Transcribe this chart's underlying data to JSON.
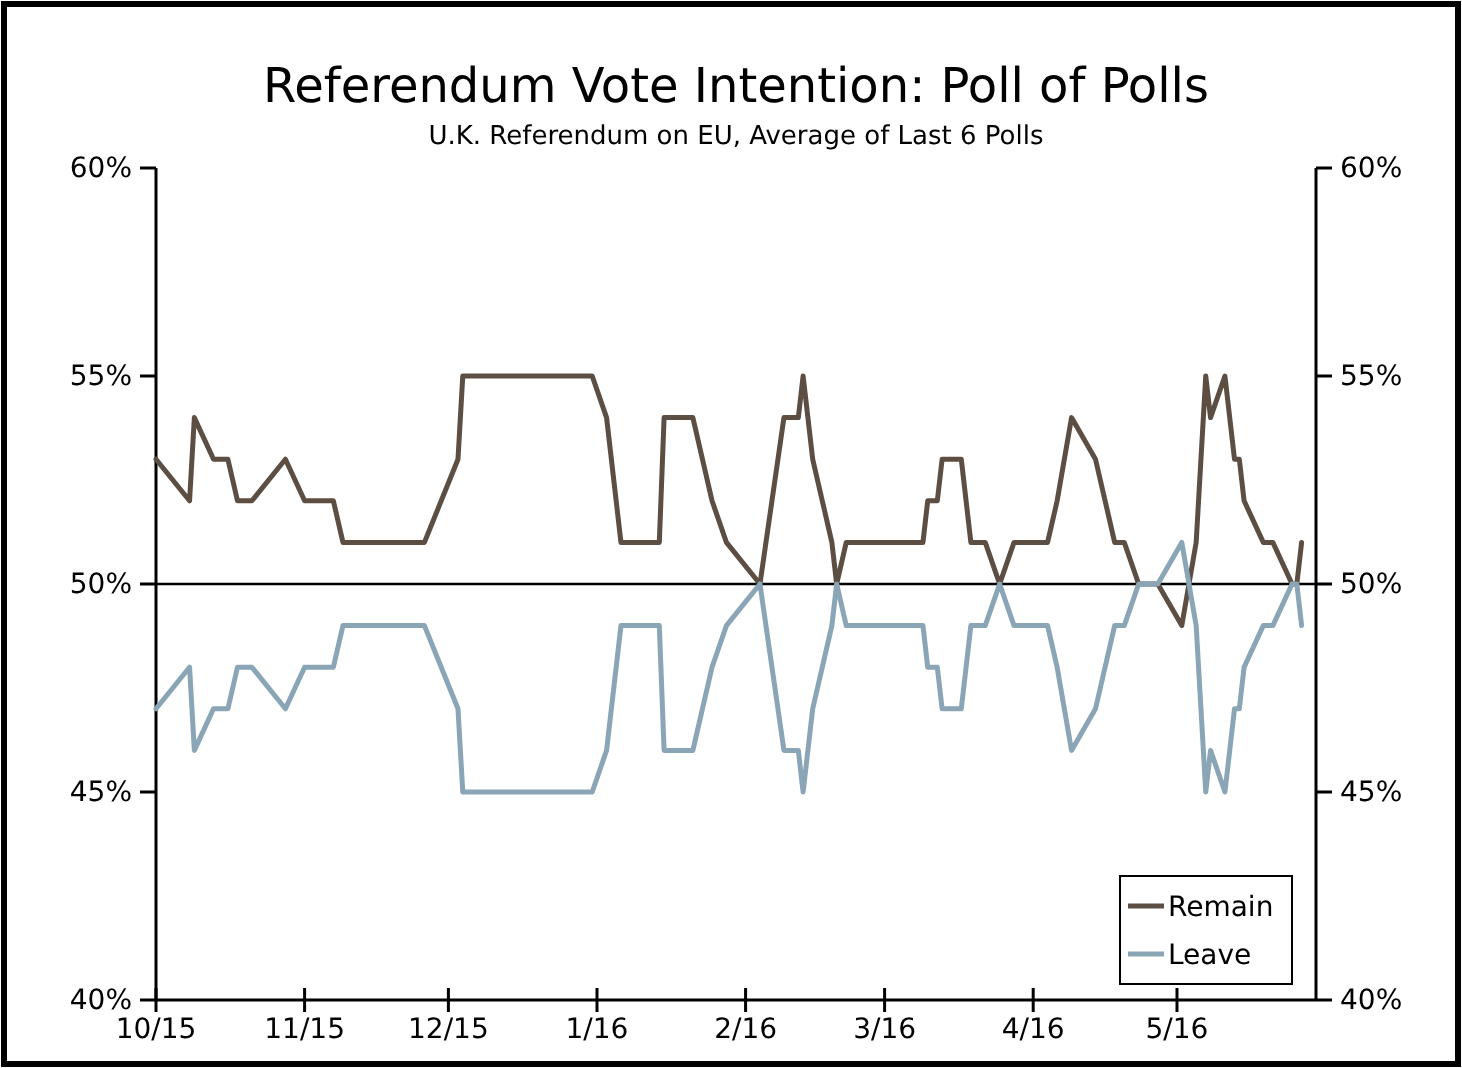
{
  "chart_data": {
    "type": "line",
    "title": "Referendum Vote Intention: Poll of Polls",
    "subtitle": "U.K. Referendum on EU, Average of Last 6 Polls",
    "x": [
      "2015-10-01",
      "2015-10-08",
      "2015-10-09",
      "2015-10-13",
      "2015-10-16",
      "2015-10-18",
      "2015-10-21",
      "2015-10-28",
      "2015-11-01",
      "2015-11-07",
      "2015-11-09",
      "2015-11-26",
      "2015-12-03",
      "2015-12-04",
      "2015-12-31",
      "2016-01-03",
      "2016-01-06",
      "2016-01-14",
      "2016-01-15",
      "2016-01-21",
      "2016-01-25",
      "2016-01-28",
      "2016-02-04",
      "2016-02-09",
      "2016-02-12",
      "2016-02-13",
      "2016-02-15",
      "2016-02-19",
      "2016-02-20",
      "2016-02-22",
      "2016-03-09",
      "2016-03-10",
      "2016-03-12",
      "2016-03-13",
      "2016-03-17",
      "2016-03-19",
      "2016-03-22",
      "2016-03-25",
      "2016-03-28",
      "2016-04-04",
      "2016-04-06",
      "2016-04-09",
      "2016-04-14",
      "2016-04-18",
      "2016-04-20",
      "2016-04-23",
      "2016-04-27",
      "2016-05-02",
      "2016-05-05",
      "2016-05-07",
      "2016-05-08",
      "2016-05-11",
      "2016-05-13",
      "2016-05-14",
      "2016-05-15",
      "2016-05-19",
      "2016-05-21",
      "2016-05-25",
      "2016-05-26",
      "2016-05-27"
    ],
    "series": [
      {
        "name": "Remain",
        "color": "#5c4e42",
        "values": [
          53,
          52,
          54,
          53,
          53,
          52,
          52,
          53,
          52,
          52,
          51,
          51,
          53,
          55,
          55,
          54,
          51,
          51,
          54,
          54,
          52,
          51,
          50,
          54,
          54,
          55,
          53,
          51,
          50,
          51,
          51,
          52,
          52,
          53,
          53,
          51,
          51,
          50,
          51,
          51,
          52,
          54,
          53,
          51,
          51,
          50,
          50,
          49,
          51,
          55,
          54,
          55,
          53,
          53,
          52,
          51,
          51,
          50,
          50,
          51
        ]
      },
      {
        "name": "Leave",
        "color": "#8aa5b5",
        "values": [
          47,
          48,
          46,
          47,
          47,
          48,
          48,
          47,
          48,
          48,
          49,
          49,
          47,
          45,
          45,
          46,
          49,
          49,
          46,
          46,
          48,
          49,
          50,
          46,
          46,
          45,
          47,
          49,
          50,
          49,
          49,
          48,
          48,
          47,
          47,
          49,
          49,
          50,
          49,
          49,
          48,
          46,
          47,
          49,
          49,
          50,
          50,
          51,
          49,
          45,
          46,
          45,
          47,
          47,
          48,
          49,
          49,
          50,
          50,
          49
        ]
      }
    ],
    "xlim": [
      "2015-10-01",
      "2016-05-30"
    ],
    "xticks": [
      {
        "value": "2015-10-01",
        "label": "10/15"
      },
      {
        "value": "2015-11-01",
        "label": "11/15"
      },
      {
        "value": "2015-12-01",
        "label": "12/15"
      },
      {
        "value": "2016-01-01",
        "label": "1/16"
      },
      {
        "value": "2016-02-01",
        "label": "2/16"
      },
      {
        "value": "2016-03-01",
        "label": "3/16"
      },
      {
        "value": "2016-04-01",
        "label": "4/16"
      },
      {
        "value": "2016-05-01",
        "label": "5/16"
      }
    ],
    "ylim": [
      40,
      60
    ],
    "yticks": [
      {
        "value": 40,
        "label": "40%"
      },
      {
        "value": 45,
        "label": "45%"
      },
      {
        "value": 50,
        "label": "50%"
      },
      {
        "value": 55,
        "label": "55%"
      },
      {
        "value": 60,
        "label": "60%"
      }
    ],
    "y2lim": [
      40,
      60
    ],
    "y2ticks": [
      {
        "value": 40,
        "label": "40%"
      },
      {
        "value": 45,
        "label": "45%"
      },
      {
        "value": 50,
        "label": "50%"
      },
      {
        "value": 55,
        "label": "55%"
      },
      {
        "value": 60,
        "label": "60%"
      }
    ],
    "ref_lines": [
      {
        "axis": "y",
        "value": 50,
        "color": "#000000"
      }
    ],
    "legend": "bottom right",
    "grid": false,
    "marker": "none",
    "line_style": "solid"
  }
}
